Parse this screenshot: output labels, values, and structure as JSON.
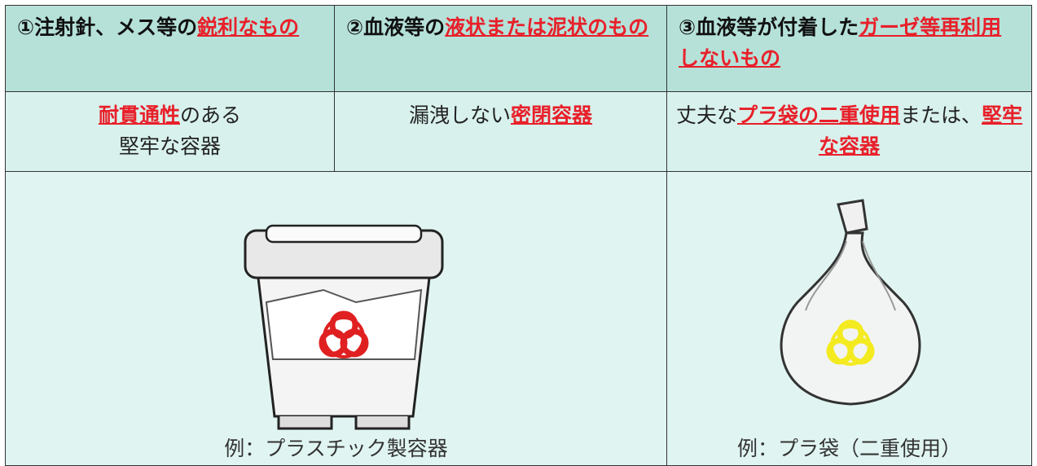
{
  "columns": [
    {
      "title": [
        "①注射針、メス等の",
        "鋭利なもの"
      ],
      "container": [
        "耐貫通性",
        "のある",
        "堅牢な容器"
      ]
    },
    {
      "title": [
        "②血液等の",
        "液状または泥状のもの"
      ],
      "container": [
        "漏洩しない",
        "密閉容器"
      ]
    },
    {
      "title": [
        "③血液等が付着した",
        "ガーゼ等再利用しないもの"
      ],
      "container": [
        "丈夫な",
        "プラ袋の二重使用",
        "または、",
        "堅牢な容器"
      ]
    }
  ],
  "examples": [
    "例：プラスチック製容器",
    "例：プラ袋（二重使用）"
  ]
}
